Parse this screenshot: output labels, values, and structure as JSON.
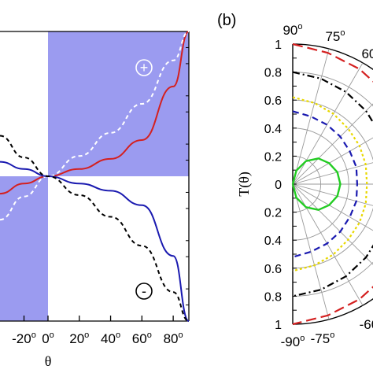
{
  "chart_data": [
    {
      "type": "line",
      "xlabel": "θ",
      "x_ticks": [
        "-20",
        "0",
        "20",
        "40",
        "60",
        "80"
      ],
      "degree_suffix": "o",
      "xlim": [
        -40,
        90
      ],
      "ylim": [
        -1,
        1
      ],
      "shaded_quadrants": [
        "x>0,y>0",
        "x<0,y<0"
      ],
      "shade_color": "#9b9bf0",
      "annotations": {
        "plus": "+",
        "minus": "-"
      },
      "series": [
        {
          "color": "#d42020",
          "style": "solid",
          "x": [
            -40,
            -20,
            0,
            20,
            40,
            60,
            80,
            90
          ],
          "y": [
            -0.12,
            -0.05,
            0,
            0.05,
            0.12,
            0.25,
            0.62,
            1.0
          ]
        },
        {
          "color": "#ffffff",
          "style": "dashed",
          "x": [
            -40,
            -20,
            0,
            20,
            40,
            60,
            80,
            90
          ],
          "y": [
            -0.3,
            -0.14,
            0,
            0.14,
            0.3,
            0.5,
            0.8,
            1.0
          ]
        },
        {
          "color": "#1a1ab0",
          "style": "solid",
          "x": [
            -40,
            -20,
            0,
            20,
            40,
            60,
            80,
            90
          ],
          "y": [
            0.1,
            0.05,
            0,
            -0.05,
            -0.1,
            -0.2,
            -0.55,
            -1.0
          ]
        },
        {
          "color": "#000000",
          "style": "dashed",
          "x": [
            -40,
            -20,
            0,
            20,
            40,
            60,
            80,
            90
          ],
          "y": [
            0.28,
            0.13,
            0,
            -0.13,
            -0.28,
            -0.48,
            -0.8,
            -1.0
          ]
        }
      ]
    },
    {
      "type": "polar",
      "panel_label": "(b)",
      "ylabel": "T(θ)",
      "radial_ticks": [
        "1",
        "0.8",
        "0.6",
        "0.4",
        "0.2",
        "0",
        "0.2",
        "0.4",
        "0.6",
        "0.8",
        "1"
      ],
      "angle_labels_top": [
        "90",
        "75",
        "60"
      ],
      "angle_labels_bottom": [
        "-90",
        "-75",
        "-60"
      ],
      "degree_suffix": "o",
      "rlim": [
        0,
        1
      ],
      "series": [
        {
          "color": "#d42020",
          "style": "long-dash",
          "angles": [
            90,
            75,
            60,
            45,
            30,
            15,
            0
          ],
          "r": [
            1.0,
            0.97,
            0.95,
            0.93,
            0.92,
            0.91,
            0.9
          ]
        },
        {
          "color": "#000000",
          "style": "dash-dot",
          "angles": [
            90,
            75,
            60,
            45,
            30,
            15,
            0
          ],
          "r": [
            0.8,
            0.78,
            0.76,
            0.74,
            0.72,
            0.71,
            0.7
          ]
        },
        {
          "color": "#e8d800",
          "style": "dotted",
          "angles": [
            90,
            75,
            60,
            45,
            30,
            15,
            0
          ],
          "r": [
            0.62,
            0.6,
            0.58,
            0.56,
            0.55,
            0.54,
            0.53
          ]
        },
        {
          "color": "#1a1ab0",
          "style": "dashed",
          "angles": [
            90,
            75,
            60,
            45,
            30,
            15,
            0
          ],
          "r": [
            0.52,
            0.5,
            0.49,
            0.48,
            0.47,
            0.47,
            0.46
          ]
        },
        {
          "color": "#22cc22",
          "style": "solid",
          "angles": [
            90,
            75,
            60,
            45,
            30,
            15,
            0
          ],
          "r": [
            0.0,
            0.1,
            0.19,
            0.26,
            0.3,
            0.33,
            0.34
          ]
        }
      ]
    }
  ]
}
